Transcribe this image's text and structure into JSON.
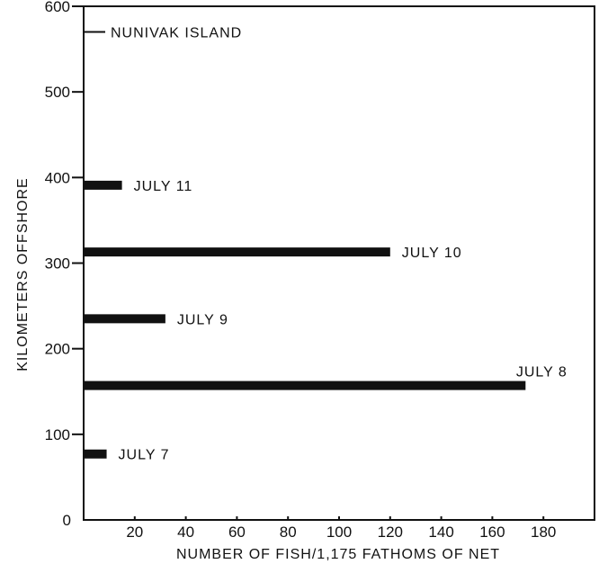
{
  "chart_data": {
    "type": "bar",
    "orientation": "horizontal",
    "title": "",
    "xlabel": "NUMBER OF FISH/1,175 FATHOMS OF NET",
    "ylabel": "KILOMETERS OFFSHORE",
    "xlim": [
      0,
      200
    ],
    "ylim": [
      0,
      600
    ],
    "x_ticks": [
      20,
      40,
      60,
      80,
      100,
      120,
      140,
      160,
      180
    ],
    "y_ticks": [
      0,
      100,
      200,
      300,
      400,
      500,
      600
    ],
    "grid": false,
    "bars": [
      {
        "label": "JULY 7",
        "y": 77,
        "value": 9
      },
      {
        "label": "JULY 8",
        "y": 157,
        "value": 173
      },
      {
        "label": "JULY 9",
        "y": 235,
        "value": 32
      },
      {
        "label": "JULY 10",
        "y": 313,
        "value": 120
      },
      {
        "label": "JULY 11",
        "y": 391,
        "value": 15
      }
    ],
    "annotations": [
      {
        "text": "NUNIVAK ISLAND",
        "y": 570
      }
    ]
  }
}
